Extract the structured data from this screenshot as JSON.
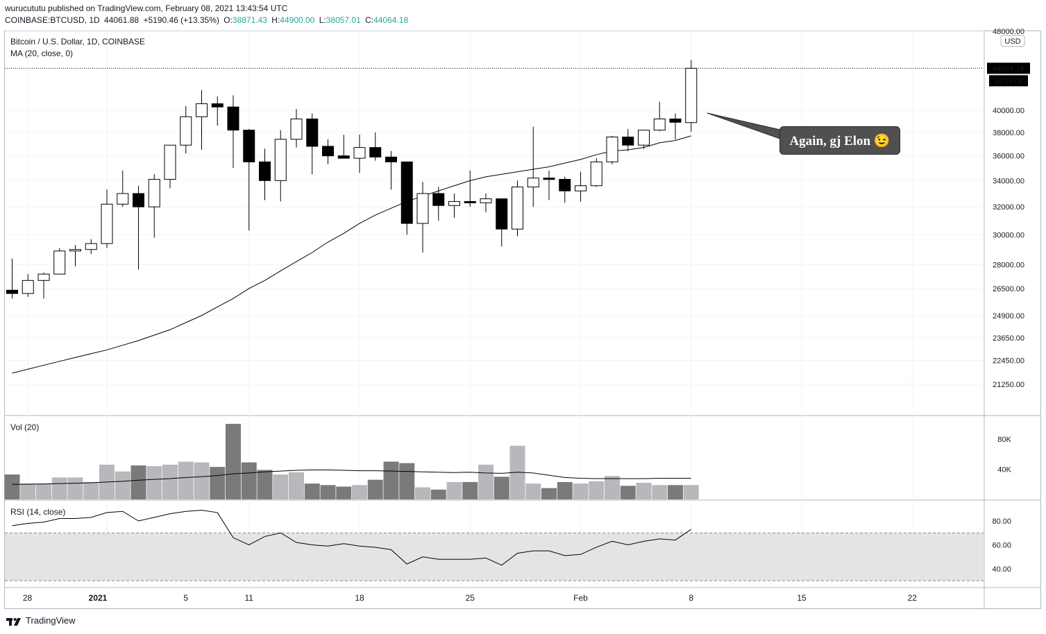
{
  "header": {
    "publish_line": "wurucututu published on TradingView.com, February 08, 2021 13:43:54 UTC",
    "symbol": "COINBASE:BTCUSD, 1D",
    "last": "44061.88",
    "change": "+5190.46 (+13.35%)",
    "o_label": "O:",
    "o": "38871.43",
    "h_label": "H:",
    "h": "44900.00",
    "l_label": "L:",
    "l": "38057.01",
    "c_label": "C:",
    "c": "44064.18"
  },
  "legend": {
    "title": "Bitcoin / U.S. Dollar, 1D, COINBASE",
    "ma": "MA (20, close, 0)",
    "vol": "Vol (20)",
    "rsi": "RSI (14, close)"
  },
  "currency": "USD",
  "annotation": "Again, gj Elon 😉",
  "price_tag": "44064.18",
  "countdown": "10:16:08",
  "footer": {
    "brand": "TradingView"
  },
  "colors": {
    "up_fill": "#ffffff",
    "down_fill": "#000000",
    "vol_up": "#b8b8bc",
    "vol_down": "#7a7a7a",
    "rsi_band": "#e4e4e4",
    "ma_line": "#000000"
  },
  "chart_data": {
    "type": "candlestick",
    "title": "Bitcoin / U.S. Dollar, 1D, COINBASE",
    "y_axis_price_labels": [
      "48000.00",
      "40000.00",
      "38000.00",
      "36000.00",
      "34000.00",
      "32000.00",
      "30000.00",
      "28000.00",
      "26500.00",
      "24900.00",
      "23650.00",
      "22450.00",
      "21250.00"
    ],
    "y_axis_volume_labels": [
      "80K",
      "40K"
    ],
    "y_axis_rsi_labels": [
      "80.00",
      "60.00",
      "40.00"
    ],
    "x_tick_labels": [
      "28",
      "2021",
      "5",
      "11",
      "18",
      "25",
      "Feb",
      "8",
      "15",
      "22"
    ],
    "price_range": [
      19800,
      48000
    ],
    "candles": [
      {
        "o": 26400,
        "h": 28400,
        "l": 25900,
        "c": 26200
      },
      {
        "o": 26200,
        "h": 27400,
        "l": 26000,
        "c": 27000
      },
      {
        "o": 27000,
        "h": 27500,
        "l": 25900,
        "c": 27400
      },
      {
        "o": 27400,
        "h": 29100,
        "l": 27400,
        "c": 28900
      },
      {
        "o": 28900,
        "h": 29300,
        "l": 27900,
        "c": 29000
      },
      {
        "o": 29000,
        "h": 29700,
        "l": 28700,
        "c": 29400
      },
      {
        "o": 29400,
        "h": 33300,
        "l": 29100,
        "c": 32200
      },
      {
        "o": 32200,
        "h": 34800,
        "l": 32000,
        "c": 33000
      },
      {
        "o": 33000,
        "h": 33600,
        "l": 27700,
        "c": 32000
      },
      {
        "o": 32000,
        "h": 34500,
        "l": 29800,
        "c": 34100
      },
      {
        "o": 34100,
        "h": 36900,
        "l": 33400,
        "c": 36900
      },
      {
        "o": 36900,
        "h": 40400,
        "l": 36200,
        "c": 39400
      },
      {
        "o": 39400,
        "h": 41900,
        "l": 36500,
        "c": 40600
      },
      {
        "o": 40600,
        "h": 41300,
        "l": 38600,
        "c": 40300
      },
      {
        "o": 40300,
        "h": 41400,
        "l": 35000,
        "c": 38200
      },
      {
        "o": 38200,
        "h": 38300,
        "l": 30300,
        "c": 35500
      },
      {
        "o": 35500,
        "h": 36600,
        "l": 32500,
        "c": 34000
      },
      {
        "o": 34000,
        "h": 38200,
        "l": 32400,
        "c": 37400
      },
      {
        "o": 37400,
        "h": 40100,
        "l": 36700,
        "c": 39200
      },
      {
        "o": 39200,
        "h": 39700,
        "l": 34500,
        "c": 36800
      },
      {
        "o": 36800,
        "h": 37400,
        "l": 35300,
        "c": 36000
      },
      {
        "o": 36000,
        "h": 37800,
        "l": 35800,
        "c": 35800
      },
      {
        "o": 35800,
        "h": 37800,
        "l": 34600,
        "c": 36700
      },
      {
        "o": 36700,
        "h": 38000,
        "l": 35600,
        "c": 35900
      },
      {
        "o": 35900,
        "h": 36400,
        "l": 33300,
        "c": 35500
      },
      {
        "o": 35500,
        "h": 35500,
        "l": 30000,
        "c": 30800
      },
      {
        "o": 30800,
        "h": 33900,
        "l": 28800,
        "c": 33000
      },
      {
        "o": 33000,
        "h": 33500,
        "l": 31000,
        "c": 32100
      },
      {
        "o": 32100,
        "h": 33000,
        "l": 31200,
        "c": 32400
      },
      {
        "o": 32400,
        "h": 34800,
        "l": 32000,
        "c": 32300
      },
      {
        "o": 32300,
        "h": 33000,
        "l": 31600,
        "c": 32600
      },
      {
        "o": 32600,
        "h": 32600,
        "l": 29200,
        "c": 30400
      },
      {
        "o": 30400,
        "h": 34000,
        "l": 29900,
        "c": 33500
      },
      {
        "o": 33500,
        "h": 38500,
        "l": 32000,
        "c": 34200
      },
      {
        "o": 34200,
        "h": 34800,
        "l": 32500,
        "c": 34100
      },
      {
        "o": 34100,
        "h": 34300,
        "l": 32300,
        "c": 33200
      },
      {
        "o": 33200,
        "h": 34700,
        "l": 32400,
        "c": 33600
      },
      {
        "o": 33600,
        "h": 35800,
        "l": 33500,
        "c": 35500
      },
      {
        "o": 35500,
        "h": 37700,
        "l": 35300,
        "c": 37600
      },
      {
        "o": 37600,
        "h": 38300,
        "l": 36400,
        "c": 36900
      },
      {
        "o": 36900,
        "h": 38200,
        "l": 36600,
        "c": 38200
      },
      {
        "o": 38200,
        "h": 40800,
        "l": 38100,
        "c": 39200
      },
      {
        "o": 39200,
        "h": 39700,
        "l": 37400,
        "c": 38900
      },
      {
        "o": 38871.43,
        "h": 44900,
        "l": 38057.01,
        "c": 44064.18
      }
    ],
    "ma20": [
      21800,
      22000,
      22200,
      22400,
      22600,
      22800,
      23000,
      23250,
      23500,
      23800,
      24100,
      24500,
      24900,
      25400,
      25900,
      26500,
      27000,
      27600,
      28200,
      28800,
      29500,
      30100,
      30800,
      31400,
      31900,
      32400,
      32800,
      33200,
      33600,
      34000,
      34300,
      34500,
      34700,
      34900,
      35100,
      35400,
      35700,
      36100,
      36400,
      36500,
      36700,
      37100,
      37300,
      37700
    ],
    "volume": [
      33000,
      21000,
      21000,
      29000,
      29000,
      23000,
      46000,
      37000,
      45000,
      44000,
      46000,
      50000,
      49000,
      43000,
      100000,
      49000,
      39000,
      33000,
      36000,
      21000,
      19000,
      17000,
      19000,
      26000,
      50000,
      48000,
      16000,
      13000,
      23000,
      23000,
      46000,
      30000,
      71000,
      21000,
      15000,
      23000,
      21000,
      24000,
      31000,
      18000,
      22000,
      19000,
      19000,
      19000
    ],
    "vol_ma": [
      20000,
      20200,
      20400,
      21000,
      21500,
      22000,
      23000,
      24000,
      25500,
      26500,
      27500,
      29000,
      30000,
      31500,
      34000,
      35000,
      36500,
      37500,
      38500,
      39000,
      39000,
      38500,
      38000,
      38000,
      37500,
      37000,
      36500,
      36000,
      35500,
      36000,
      35000,
      34500,
      36000,
      35000,
      32000,
      29000,
      28000,
      27500,
      27500,
      27500,
      27500,
      28000,
      28000,
      28000
    ],
    "rsi": [
      76,
      78,
      79,
      82,
      82,
      83,
      87,
      88,
      80,
      83,
      86,
      88,
      89,
      87,
      66,
      60,
      67,
      70,
      62,
      60,
      59,
      61,
      59,
      58,
      56,
      44,
      50,
      48,
      48,
      48,
      49,
      43,
      53,
      55,
      55,
      51,
      52,
      58,
      63,
      60,
      63,
      65,
      64,
      73
    ],
    "rsi_band": [
      30,
      70
    ]
  }
}
